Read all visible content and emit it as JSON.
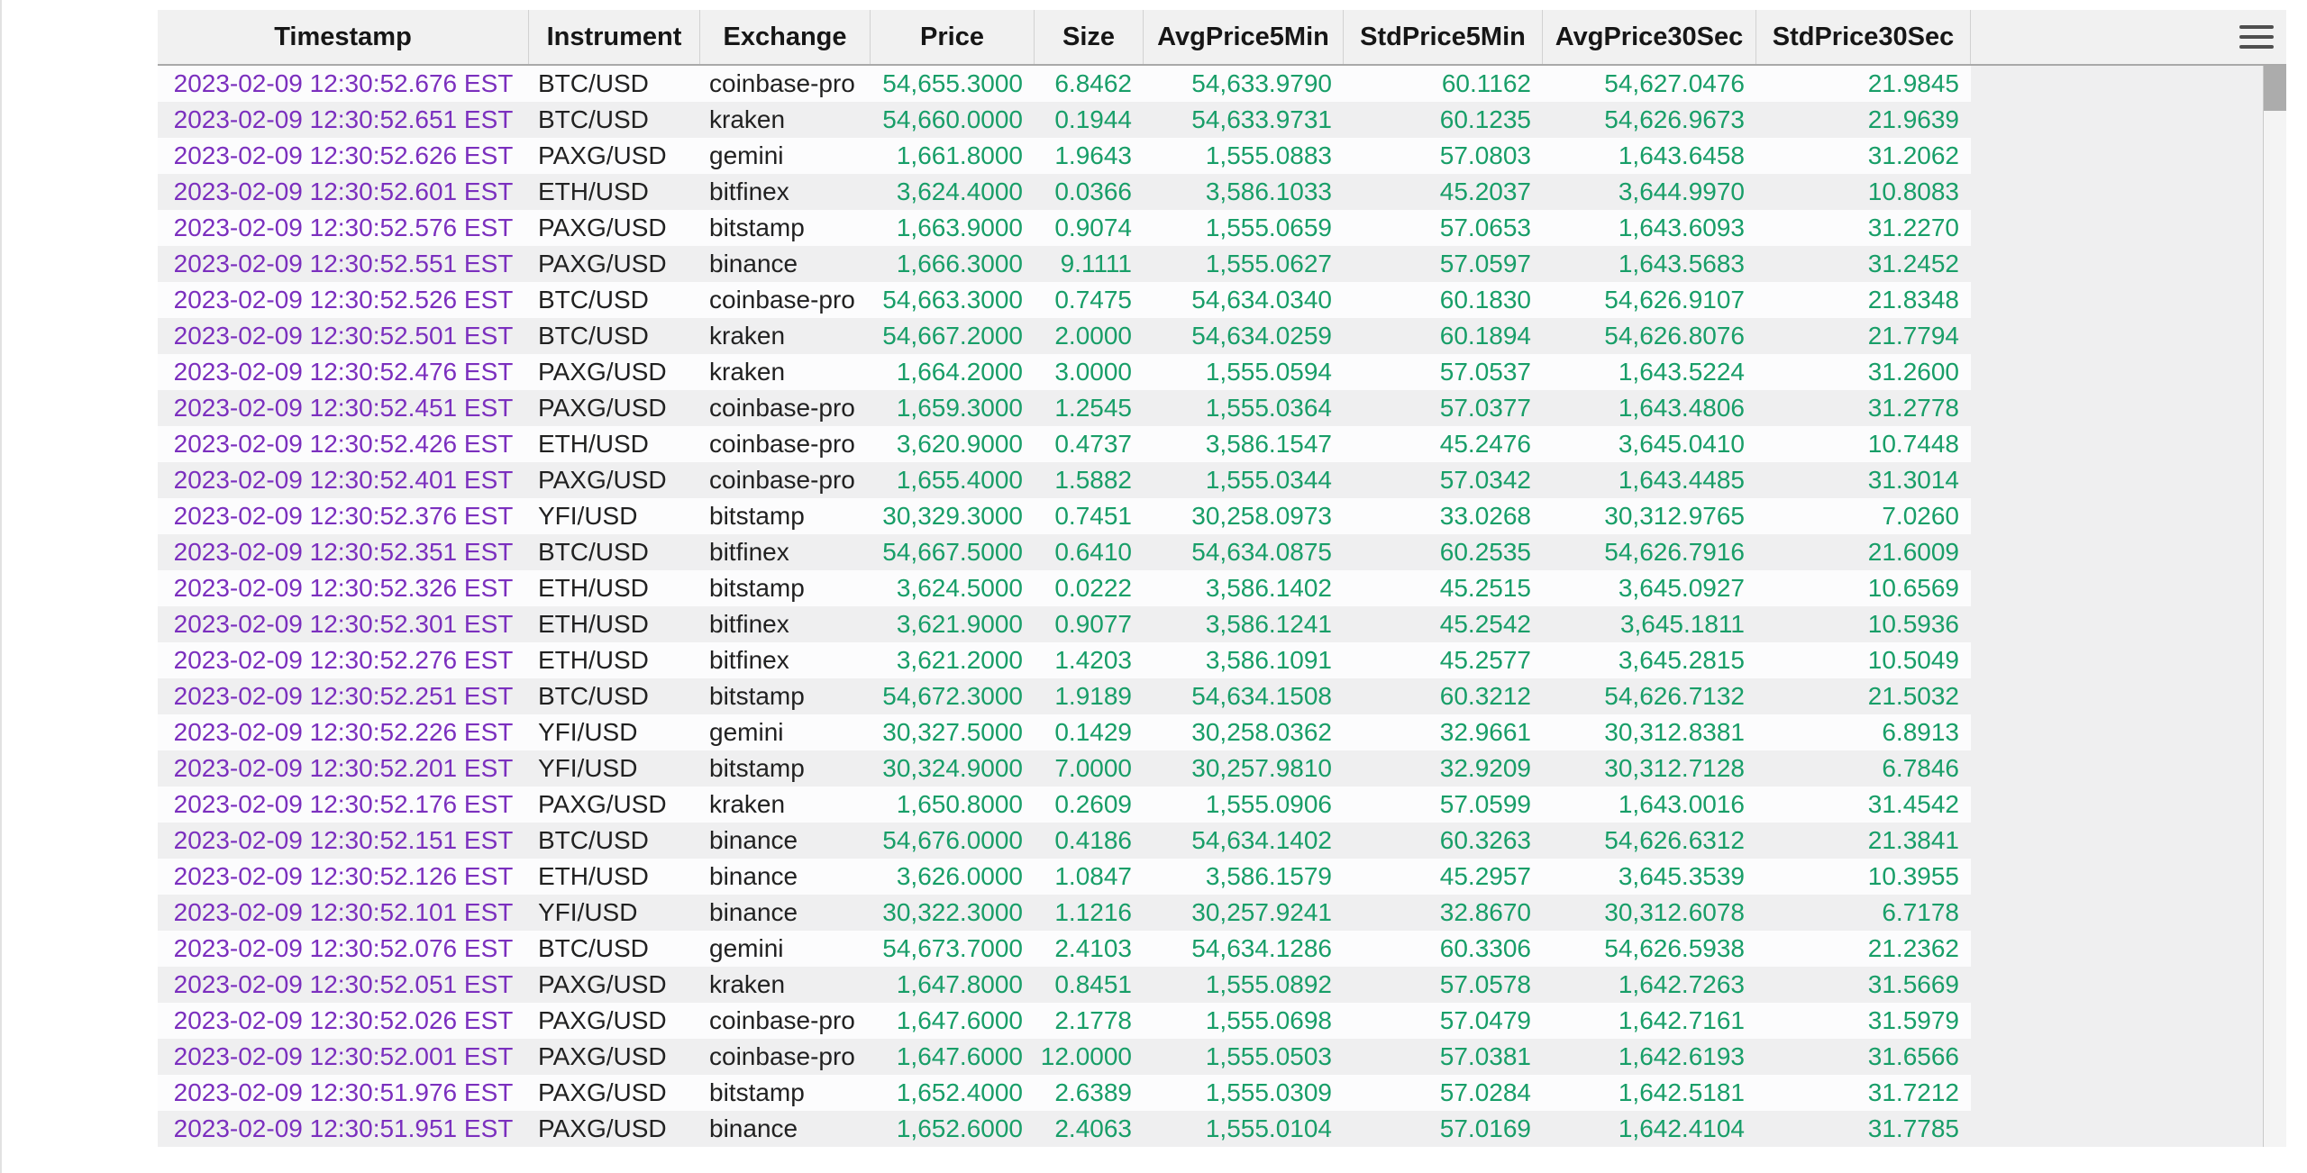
{
  "colors": {
    "timestamp_text": "#7b2fbe",
    "number_text": "#189e68",
    "header_bg": "#f1f1f1",
    "stripe_bg": "#efeff0",
    "scrollbar_thumb": "#acacac"
  },
  "icons": {
    "menu": "hamburger-menu-icon"
  },
  "table": {
    "columns": [
      {
        "label": "Timestamp"
      },
      {
        "label": "Instrument"
      },
      {
        "label": "Exchange"
      },
      {
        "label": "Price"
      },
      {
        "label": "Size"
      },
      {
        "label": "AvgPrice5Min"
      },
      {
        "label": "StdPrice5Min"
      },
      {
        "label": "AvgPrice30Sec"
      },
      {
        "label": "StdPrice30Sec"
      }
    ],
    "rows": [
      [
        "2023-02-09 12:30:52.676 EST",
        "BTC/USD",
        "coinbase-pro",
        "54,655.3000",
        "6.8462",
        "54,633.9790",
        "60.1162",
        "54,627.0476",
        "21.9845"
      ],
      [
        "2023-02-09 12:30:52.651 EST",
        "BTC/USD",
        "kraken",
        "54,660.0000",
        "0.1944",
        "54,633.9731",
        "60.1235",
        "54,626.9673",
        "21.9639"
      ],
      [
        "2023-02-09 12:30:52.626 EST",
        "PAXG/USD",
        "gemini",
        "1,661.8000",
        "1.9643",
        "1,555.0883",
        "57.0803",
        "1,643.6458",
        "31.2062"
      ],
      [
        "2023-02-09 12:30:52.601 EST",
        "ETH/USD",
        "bitfinex",
        "3,624.4000",
        "0.0366",
        "3,586.1033",
        "45.2037",
        "3,644.9970",
        "10.8083"
      ],
      [
        "2023-02-09 12:30:52.576 EST",
        "PAXG/USD",
        "bitstamp",
        "1,663.9000",
        "0.9074",
        "1,555.0659",
        "57.0653",
        "1,643.6093",
        "31.2270"
      ],
      [
        "2023-02-09 12:30:52.551 EST",
        "PAXG/USD",
        "binance",
        "1,666.3000",
        "9.1111",
        "1,555.0627",
        "57.0597",
        "1,643.5683",
        "31.2452"
      ],
      [
        "2023-02-09 12:30:52.526 EST",
        "BTC/USD",
        "coinbase-pro",
        "54,663.3000",
        "0.7475",
        "54,634.0340",
        "60.1830",
        "54,626.9107",
        "21.8348"
      ],
      [
        "2023-02-09 12:30:52.501 EST",
        "BTC/USD",
        "kraken",
        "54,667.2000",
        "2.0000",
        "54,634.0259",
        "60.1894",
        "54,626.8076",
        "21.7794"
      ],
      [
        "2023-02-09 12:30:52.476 EST",
        "PAXG/USD",
        "kraken",
        "1,664.2000",
        "3.0000",
        "1,555.0594",
        "57.0537",
        "1,643.5224",
        "31.2600"
      ],
      [
        "2023-02-09 12:30:52.451 EST",
        "PAXG/USD",
        "coinbase-pro",
        "1,659.3000",
        "1.2545",
        "1,555.0364",
        "57.0377",
        "1,643.4806",
        "31.2778"
      ],
      [
        "2023-02-09 12:30:52.426 EST",
        "ETH/USD",
        "coinbase-pro",
        "3,620.9000",
        "0.4737",
        "3,586.1547",
        "45.2476",
        "3,645.0410",
        "10.7448"
      ],
      [
        "2023-02-09 12:30:52.401 EST",
        "PAXG/USD",
        "coinbase-pro",
        "1,655.4000",
        "1.5882",
        "1,555.0344",
        "57.0342",
        "1,643.4485",
        "31.3014"
      ],
      [
        "2023-02-09 12:30:52.376 EST",
        "YFI/USD",
        "bitstamp",
        "30,329.3000",
        "0.7451",
        "30,258.0973",
        "33.0268",
        "30,312.9765",
        "7.0260"
      ],
      [
        "2023-02-09 12:30:52.351 EST",
        "BTC/USD",
        "bitfinex",
        "54,667.5000",
        "0.6410",
        "54,634.0875",
        "60.2535",
        "54,626.7916",
        "21.6009"
      ],
      [
        "2023-02-09 12:30:52.326 EST",
        "ETH/USD",
        "bitstamp",
        "3,624.5000",
        "0.0222",
        "3,586.1402",
        "45.2515",
        "3,645.0927",
        "10.6569"
      ],
      [
        "2023-02-09 12:30:52.301 EST",
        "ETH/USD",
        "bitfinex",
        "3,621.9000",
        "0.9077",
        "3,586.1241",
        "45.2542",
        "3,645.1811",
        "10.5936"
      ],
      [
        "2023-02-09 12:30:52.276 EST",
        "ETH/USD",
        "bitfinex",
        "3,621.2000",
        "1.4203",
        "3,586.1091",
        "45.2577",
        "3,645.2815",
        "10.5049"
      ],
      [
        "2023-02-09 12:30:52.251 EST",
        "BTC/USD",
        "bitstamp",
        "54,672.3000",
        "1.9189",
        "54,634.1508",
        "60.3212",
        "54,626.7132",
        "21.5032"
      ],
      [
        "2023-02-09 12:30:52.226 EST",
        "YFI/USD",
        "gemini",
        "30,327.5000",
        "0.1429",
        "30,258.0362",
        "32.9661",
        "30,312.8381",
        "6.8913"
      ],
      [
        "2023-02-09 12:30:52.201 EST",
        "YFI/USD",
        "bitstamp",
        "30,324.9000",
        "7.0000",
        "30,257.9810",
        "32.9209",
        "30,312.7128",
        "6.7846"
      ],
      [
        "2023-02-09 12:30:52.176 EST",
        "PAXG/USD",
        "kraken",
        "1,650.8000",
        "0.2609",
        "1,555.0906",
        "57.0599",
        "1,643.0016",
        "31.4542"
      ],
      [
        "2023-02-09 12:30:52.151 EST",
        "BTC/USD",
        "binance",
        "54,676.0000",
        "0.4186",
        "54,634.1402",
        "60.3263",
        "54,626.6312",
        "21.3841"
      ],
      [
        "2023-02-09 12:30:52.126 EST",
        "ETH/USD",
        "binance",
        "3,626.0000",
        "1.0847",
        "3,586.1579",
        "45.2957",
        "3,645.3539",
        "10.3955"
      ],
      [
        "2023-02-09 12:30:52.101 EST",
        "YFI/USD",
        "binance",
        "30,322.3000",
        "1.1216",
        "30,257.9241",
        "32.8670",
        "30,312.6078",
        "6.7178"
      ],
      [
        "2023-02-09 12:30:52.076 EST",
        "BTC/USD",
        "gemini",
        "54,673.7000",
        "2.4103",
        "54,634.1286",
        "60.3306",
        "54,626.5938",
        "21.2362"
      ],
      [
        "2023-02-09 12:30:52.051 EST",
        "PAXG/USD",
        "kraken",
        "1,647.8000",
        "0.8451",
        "1,555.0892",
        "57.0578",
        "1,642.7263",
        "31.5669"
      ],
      [
        "2023-02-09 12:30:52.026 EST",
        "PAXG/USD",
        "coinbase-pro",
        "1,647.6000",
        "2.1778",
        "1,555.0698",
        "57.0479",
        "1,642.7161",
        "31.5979"
      ],
      [
        "2023-02-09 12:30:52.001 EST",
        "PAXG/USD",
        "coinbase-pro",
        "1,647.6000",
        "12.0000",
        "1,555.0503",
        "57.0381",
        "1,642.6193",
        "31.6566"
      ],
      [
        "2023-02-09 12:30:51.976 EST",
        "PAXG/USD",
        "bitstamp",
        "1,652.4000",
        "2.6389",
        "1,555.0309",
        "57.0284",
        "1,642.5181",
        "31.7212"
      ],
      [
        "2023-02-09 12:30:51.951 EST",
        "PAXG/USD",
        "binance",
        "1,652.6000",
        "2.4063",
        "1,555.0104",
        "57.0169",
        "1,642.4104",
        "31.7785"
      ]
    ]
  }
}
